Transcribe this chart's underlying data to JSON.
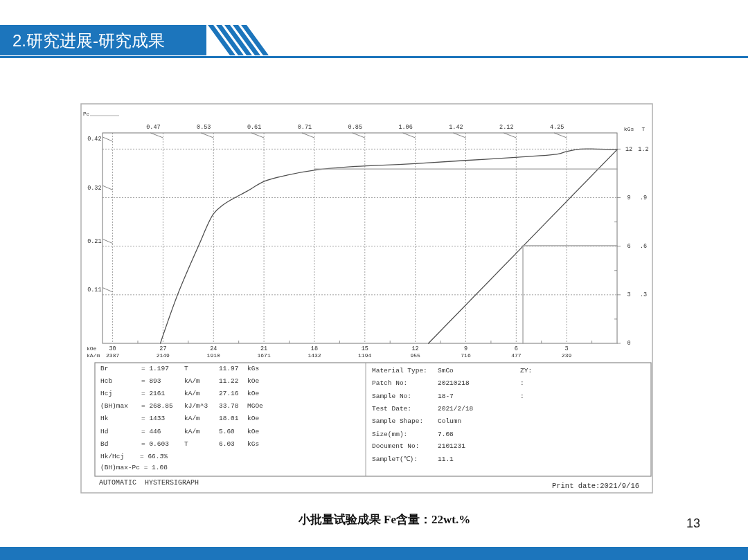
{
  "chart_data": {
    "type": "line",
    "title": "2.研究进展-研究成果",
    "xlabel": "kOe",
    "x2label": "kA/m",
    "ylabel": "kGs",
    "y2label": "T",
    "y3label": "Pc",
    "xlim": [
      30.6,
      0
    ],
    "xticks": [
      30,
      {
        "value": 28.5,
        "label": null
      },
      27,
      {
        "value": 25.5,
        "label": null
      },
      24,
      {
        "value": 22.5,
        "label": null
      },
      21,
      {
        "value": 19.5,
        "label": null
      },
      18,
      {
        "value": 16.5,
        "label": null
      },
      15,
      {
        "value": 13.5,
        "label": null
      },
      12,
      {
        "value": 10.5,
        "label": null
      },
      9,
      {
        "value": 7.5,
        "label": null
      },
      6,
      {
        "value": 4.5,
        "label": null
      },
      3,
      {
        "value": 1.5,
        "label": null
      }
    ],
    "x2lim": [
      2435,
      0
    ],
    "x2ticks": [
      2387,
      2149,
      1910,
      1671,
      1432,
      1194,
      955,
      716,
      477,
      239
    ],
    "ylim": [
      0,
      13.0
    ],
    "yticks": [
      0,
      {
        "value": 1.5,
        "label": null
      },
      3,
      {
        "value": 4.5,
        "label": null
      },
      6,
      {
        "value": 7.5,
        "label": null
      },
      9,
      12
    ],
    "y2lim": [
      0,
      1.3
    ],
    "y2ticks": [
      {
        "value": 0.3,
        "label": ".3"
      },
      {
        "value": 0.6,
        "label": ".6"
      },
      {
        "value": 0.9,
        "label": ".9"
      },
      1.2
    ],
    "y3lim": [
      0,
      0.433
    ],
    "y3ticks": [
      0.11,
      0.21,
      0.32,
      0.42
    ],
    "grid": true,
    "line_style": "solid",
    "series": [
      {
        "color": "#505050",
        "x": [
          27.16,
          26.1,
          24.9,
          24.0,
          23.5,
          22.9,
          22.0,
          21.0,
          19.6,
          18.0,
          16.0,
          14.9,
          12.0,
          9.0,
          5.9,
          3.5,
          3.0,
          2.2,
          1.2,
          0
        ],
        "values": [
          0,
          3.1,
          6.0,
          8.0,
          8.5,
          8.9,
          9.4,
          10.0,
          10.4,
          10.7,
          10.9,
          10.96,
          11.1,
          11.3,
          11.5,
          11.7,
          11.85,
          12.0,
          12.0,
          11.97
        ]
      },
      {
        "color": "#505050",
        "x": [
          11.22,
          0
        ],
        "values": [
          0,
          11.97
        ]
      },
      {
        "color": "#a0a0a0",
        "x": [
          18.01,
          0
        ],
        "values": [
          10.77,
          10.77
        ]
      },
      {
        "color": "#a0a0a0",
        "x": [
          5.6,
          5.6
        ],
        "values": [
          0,
          6.03
        ]
      },
      {
        "color": "#a0a0a0",
        "x": [
          5.6,
          0
        ],
        "values": [
          6.03,
          6.03
        ]
      }
    ],
    "annotations": [
      "Br",
      "= 1.197",
      "T",
      "11.97",
      "kGs",
      "Hcb",
      "= 893",
      "kA/m",
      "11.22",
      "kOe",
      "Hcj",
      "= 2161",
      "kA/m",
      "27.16",
      "kOe",
      "(BH)max",
      "= 268.85",
      "kJ/m^3",
      "33.78",
      "MGOe",
      "Hk",
      "= 1433",
      "kA/m",
      "18.01",
      "kOe",
      "Hd",
      "= 446",
      "kA/m",
      "5.60",
      "kOe",
      "Bd",
      "= 0.603",
      "T",
      "6.03",
      "kGs",
      "Hk/Hcj",
      "= 66.3%",
      "(BH)max-Pc = 1.08",
      "Material Type:",
      "SmCo",
      "Patch No:",
      "20210218",
      "Sample No:",
      "18-7",
      "Test Date:",
      "2021/2/18",
      "Sample Shape:",
      "Column",
      "Size(mm):",
      "7.08",
      "Document No:",
      "2101231",
      "SampleT(℃):",
      "11.1",
      "ZY:",
      ":",
      ":",
      "AUTOMATIC  HYSTERSIGRAPH",
      "Print date:2021/9/16",
      "小批量试验成果 Fe含量：22wt.%",
      "13",
      "0.47",
      "0.53",
      "0.61",
      "0.71",
      "0.85",
      "1.06",
      "1.42",
      "2.12",
      "4.25"
    ]
  }
}
